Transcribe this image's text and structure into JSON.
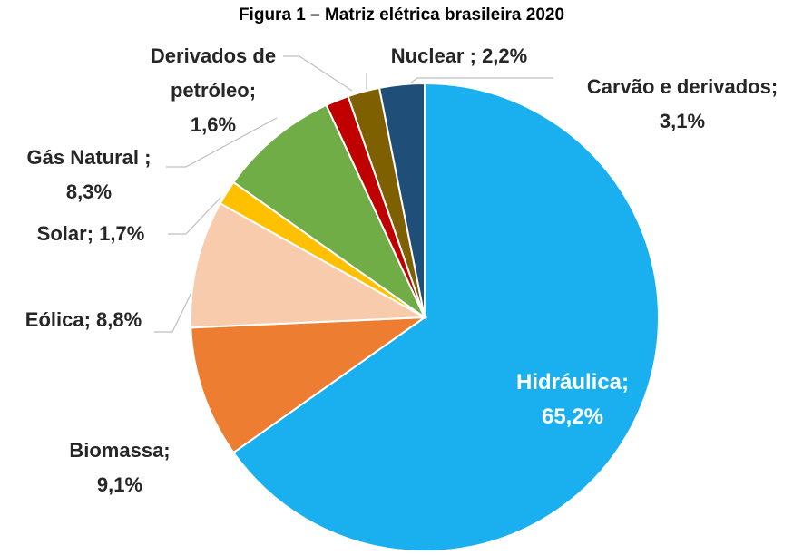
{
  "chart_data": {
    "type": "pie",
    "title": "Figura 1 – Matriz elétrica brasileira 2020",
    "categories": [
      "Hidráulica;",
      "Biomassa;",
      "Eólica;",
      "Solar;",
      "Gás Natural ;",
      "Derivados de petróleo;",
      "Nuclear ;",
      "Carvão e derivados;"
    ],
    "values": [
      65.2,
      9.1,
      8.8,
      1.7,
      8.3,
      1.6,
      2.2,
      3.1
    ],
    "value_labels": [
      "65,2%",
      "9,1%",
      "8,8%",
      "1,7%",
      "8,3%",
      "1,6%",
      "2,2%",
      "3,1%"
    ],
    "colors": [
      "#1ab0ef",
      "#ed7d31",
      "#f8cbad",
      "#ffc000",
      "#70ad47",
      "#c00000",
      "#7f6000",
      "#1f4e79"
    ]
  }
}
